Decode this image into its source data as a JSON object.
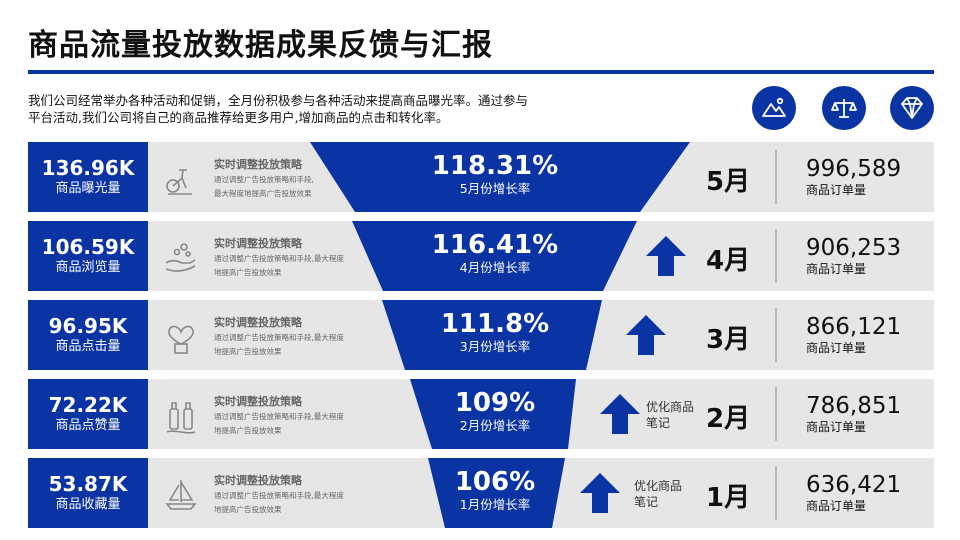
{
  "title": "商品流量投放数据成果反馈与汇报",
  "intro": {
    "line1": "我们公司经常举办各种活动和促销，全月份积极参与各种活动来提高商品曝光率。通过参与",
    "line2": "平台活动,我们公司将自己的商品推荐给更多用户,增加商品的点击和转化率。"
  },
  "top_icons": [
    "mountain-picture-icon",
    "balance-scale-icon",
    "diamond-icon"
  ],
  "colors": {
    "accent": "#0a33a3",
    "row_bg": "#e6e6e6",
    "separator": "#b8b8b8"
  },
  "rows": [
    {
      "metric_value": "136.96K",
      "metric_label": "商品曝光量",
      "icon": "exercise-bike-icon",
      "desc_title": "实时调整投放策略",
      "desc_line1": "通过调整广告投放策略和手段,",
      "desc_line2": "最大程度地提高广告投放效果",
      "growth": "118.31%",
      "growth_label": "5月份增长率",
      "has_arrow": false,
      "note_line1": "",
      "note_line2": "",
      "month": "5月",
      "orders": "996,589",
      "orders_label": "商品订单量"
    },
    {
      "metric_value": "106.59K",
      "metric_label": "商品浏览量",
      "icon": "hand-coins-icon",
      "desc_title": "实时调整投放策略",
      "desc_line1": "通过调整广告投放策略和手段,最大程度",
      "desc_line2": "地提高广告投放效果",
      "growth": "116.41%",
      "growth_label": "4月份增长率",
      "has_arrow": true,
      "note_line1": "",
      "note_line2": "",
      "month": "4月",
      "orders": "906,253",
      "orders_label": "商品订单量"
    },
    {
      "metric_value": "96.95K",
      "metric_label": "商品点击量",
      "icon": "heart-gift-icon",
      "desc_title": "实时调整投放策略",
      "desc_line1": "通过调整广告投放策略和手段,最大程度",
      "desc_line2": "地提高广告投放效果",
      "growth": "111.8%",
      "growth_label": "3月份增长率",
      "has_arrow": true,
      "note_line1": "",
      "note_line2": "",
      "month": "3月",
      "orders": "866,121",
      "orders_label": "商品订单量"
    },
    {
      "metric_value": "72.22K",
      "metric_label": "商品点赞量",
      "icon": "bottles-icon",
      "desc_title": "实时调整投放策略",
      "desc_line1": "通过调整广告投放策略和手段,最大程度",
      "desc_line2": "地提高广告投放效果",
      "growth": "109%",
      "growth_label": "2月份增长率",
      "has_arrow": true,
      "note_line1": "优化商品",
      "note_line2": "笔记",
      "month": "2月",
      "orders": "786,851",
      "orders_label": "商品订单量"
    },
    {
      "metric_value": "53.87K",
      "metric_label": "商品收藏量",
      "icon": "sailboat-icon",
      "desc_title": "实时调整投放策略",
      "desc_line1": "通过调整广告投放策略和手段,最大程度",
      "desc_line2": "地提高广告投放效果",
      "growth": "106%",
      "growth_label": "1月份增长率",
      "has_arrow": true,
      "note_line1": "优化商品",
      "note_line2": "笔记",
      "month": "1月",
      "orders": "636,421",
      "orders_label": "商品订单量"
    }
  ]
}
